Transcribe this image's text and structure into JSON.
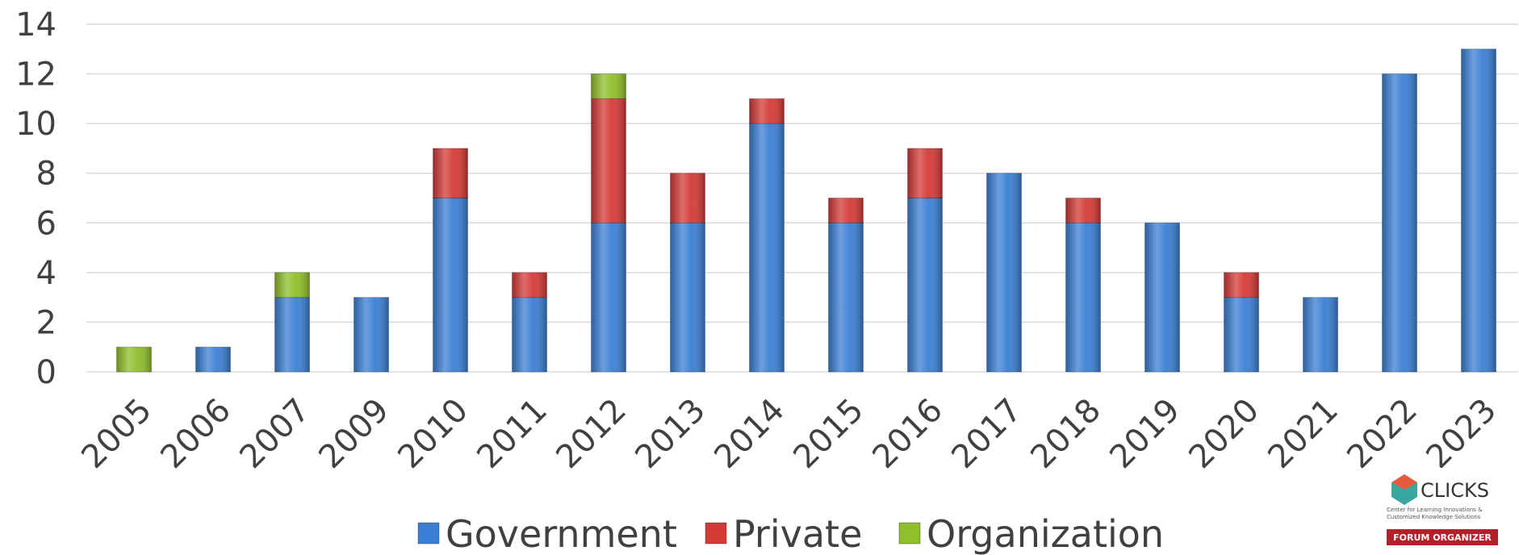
{
  "chart_data": {
    "type": "stacked_bar",
    "categories": [
      "2005",
      "2006",
      "2007",
      "2009",
      "2010",
      "2011",
      "2012",
      "2013",
      "2014",
      "2015",
      "2016",
      "2017",
      "2018",
      "2019",
      "2020",
      "2021",
      "2022",
      "2023"
    ],
    "series": [
      {
        "name": "Government",
        "color": "#3b7fd4",
        "values": [
          0,
          1,
          3,
          3,
          7,
          3,
          6,
          6,
          10,
          6,
          7,
          8,
          6,
          6,
          3,
          3,
          12,
          13
        ]
      },
      {
        "name": "Private",
        "color": "#d43a36",
        "values": [
          0,
          0,
          0,
          0,
          2,
          1,
          5,
          2,
          1,
          1,
          2,
          0,
          1,
          0,
          1,
          0,
          0,
          0
        ]
      },
      {
        "name": "Organization",
        "color": "#8fbf2a",
        "values": [
          1,
          0,
          1,
          0,
          0,
          0,
          1,
          0,
          0,
          0,
          0,
          0,
          0,
          0,
          0,
          0,
          0,
          0
        ]
      }
    ],
    "ylim": [
      0,
      14
    ],
    "yticks": [
      0,
      2,
      4,
      6,
      8,
      10,
      12,
      14
    ],
    "grid": true,
    "legend": "bottom"
  },
  "logo": {
    "name": "CLICKS",
    "tagline": "Center for Learning Innovations & Customized Knowledge Solutions",
    "badge": "FORUM ORGANIZER"
  }
}
